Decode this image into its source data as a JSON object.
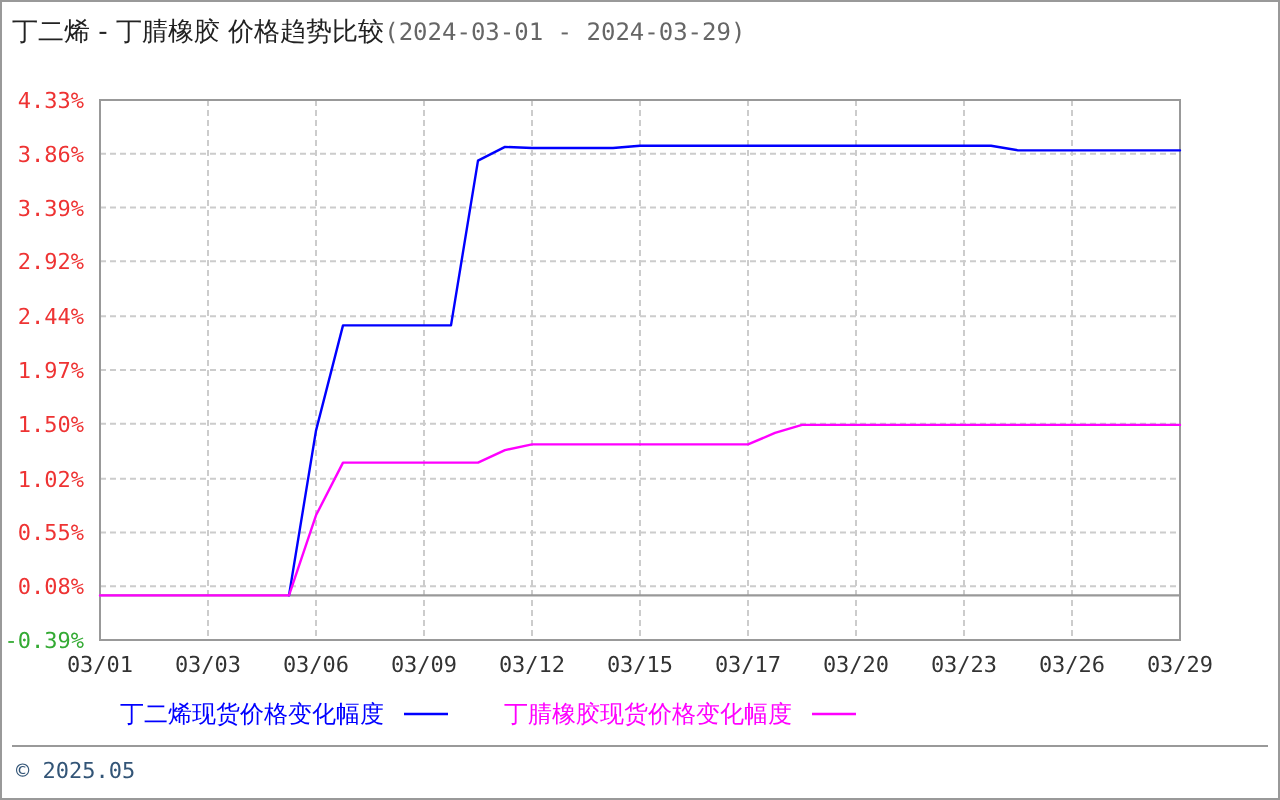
{
  "chart_data": {
    "type": "line",
    "title": "丁二烯 - 丁腈橡胶 价格趋势比较",
    "subtitle": "(2024-03-01 - 2024-03-29)",
    "categories": [
      "03/01",
      null,
      null,
      null,
      "03/03",
      null,
      null,
      null,
      "03/06",
      null,
      null,
      null,
      "03/09",
      null,
      null,
      null,
      "03/12",
      null,
      null,
      null,
      "03/15",
      null,
      null,
      null,
      "03/17",
      null,
      null,
      null,
      "03/20",
      null,
      null,
      null,
      "03/23",
      null,
      null,
      null,
      "03/26",
      null,
      null,
      null,
      "03/29"
    ],
    "series": [
      {
        "name": "丁二烯现货价格变化幅度",
        "color": "#0000ff",
        "values": [
          null,
          null,
          null,
          null,
          null,
          null,
          null,
          0,
          1.44,
          2.36,
          2.36,
          2.36,
          2.36,
          2.36,
          3.8,
          3.92,
          3.91,
          3.91,
          3.91,
          3.91,
          3.93,
          3.93,
          3.93,
          3.93,
          3.93,
          3.93,
          3.93,
          3.93,
          3.93,
          3.93,
          3.93,
          3.93,
          3.93,
          3.93,
          3.89,
          3.89,
          3.89,
          3.89,
          3.89,
          3.89,
          3.89
        ]
      },
      {
        "name": "丁腈橡胶现货价格变化幅度",
        "color": "#ff00ff",
        "values": [
          0,
          0,
          0,
          0,
          0,
          0,
          0,
          0,
          0.7,
          1.16,
          1.16,
          1.16,
          1.16,
          1.16,
          1.16,
          1.27,
          1.32,
          1.32,
          1.32,
          1.32,
          1.32,
          1.32,
          1.32,
          1.32,
          1.32,
          1.42,
          1.49,
          1.49,
          1.49,
          1.49,
          1.49,
          1.49,
          1.49,
          1.49,
          1.49,
          1.49,
          1.49,
          1.49,
          1.49,
          1.49,
          1.49
        ]
      }
    ],
    "ylim": [
      -0.39,
      4.33
    ],
    "yticks": [
      {
        "value": 4.33,
        "label": "4.33%"
      },
      {
        "value": 3.86,
        "label": "3.86%"
      },
      {
        "value": 3.39,
        "label": "3.39%"
      },
      {
        "value": 2.92,
        "label": "2.92%"
      },
      {
        "value": 2.44,
        "label": "2.44%"
      },
      {
        "value": 1.97,
        "label": "1.97%"
      },
      {
        "value": 1.5,
        "label": "1.50%"
      },
      {
        "value": 1.02,
        "label": "1.02%"
      },
      {
        "value": 0.55,
        "label": "0.55%"
      },
      {
        "value": 0.08,
        "label": "0.08%"
      },
      {
        "value": -0.39,
        "label": "-0.39%"
      }
    ],
    "ref_lines": [
      {
        "axis": "y",
        "value": 0,
        "color": "#999999"
      }
    ],
    "grid": true,
    "legend": "bottom",
    "line_style": "solid",
    "marker": "none",
    "annotations": [
      "© 2025.05"
    ]
  }
}
